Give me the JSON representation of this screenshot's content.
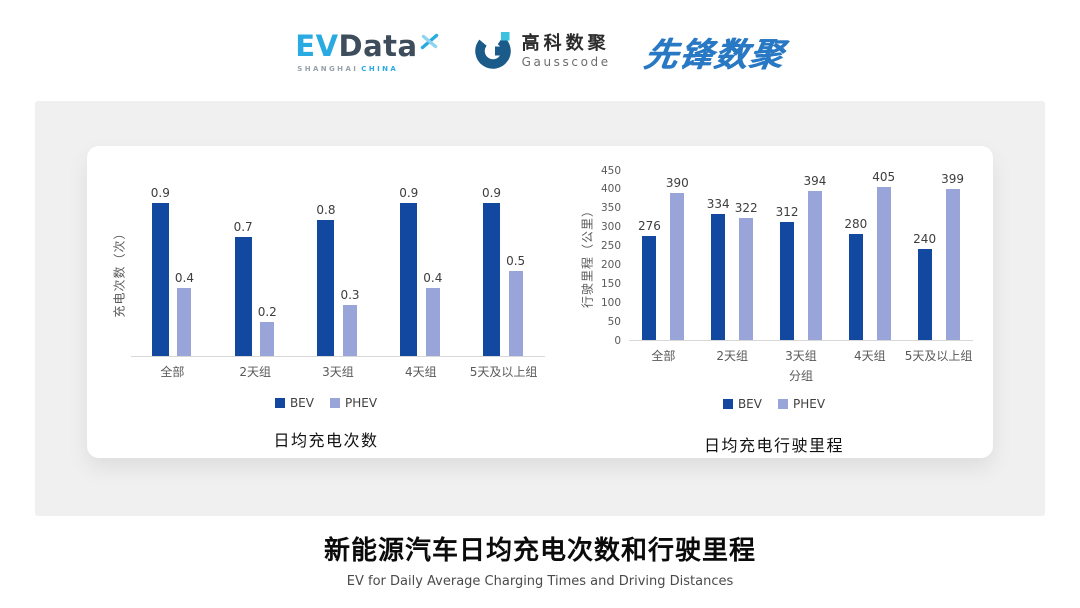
{
  "header": {
    "evdata": {
      "ev": "EV",
      "data": "Data",
      "sub_left": "SHANGHAI",
      "sub_right": "CHINA"
    },
    "gausscode": {
      "cn": "高科数聚",
      "en": "Gausscode"
    },
    "xianfeng": {
      "text": "先锋数聚"
    }
  },
  "colors": {
    "bev": "#1348A0",
    "phev": "#99A5D8",
    "accent_cyan": "#29ABE2",
    "dark_slate": "#3E4D5C",
    "gausscode_navy": "#1A5B8A",
    "xianfeng_blue": "#2878C4",
    "panel_gray": "#F0F0F1",
    "baseline_gray": "#D8D8D8"
  },
  "chart_data": [
    {
      "type": "bar",
      "title": "日均充电次数",
      "ylabel": "充电次数（次）",
      "xlabel": "",
      "categories": [
        "全部",
        "2天组",
        "3天组",
        "4天组",
        "5天及以上组"
      ],
      "series": [
        {
          "name": "BEV",
          "values": [
            0.9,
            0.7,
            0.8,
            0.9,
            0.9
          ]
        },
        {
          "name": "PHEV",
          "values": [
            0.4,
            0.2,
            0.3,
            0.4,
            0.5
          ]
        }
      ],
      "ylim": [
        0,
        1.0
      ],
      "yticks": [],
      "grid": false,
      "legend_position": "bottom",
      "value_labels": true
    },
    {
      "type": "bar",
      "title": "日均充电行驶里程",
      "ylabel": "行驶里程（公里）",
      "xlabel": "分组",
      "categories": [
        "全部",
        "2天组",
        "3天组",
        "4天组",
        "5天及以上组"
      ],
      "series": [
        {
          "name": "BEV",
          "values": [
            276,
            334,
            312,
            280,
            240
          ]
        },
        {
          "name": "PHEV",
          "values": [
            390,
            322,
            394,
            405,
            399
          ]
        }
      ],
      "ylim": [
        0,
        450
      ],
      "yticks": [
        0,
        50,
        100,
        150,
        200,
        250,
        300,
        350,
        400,
        450
      ],
      "grid": false,
      "legend_position": "bottom",
      "value_labels": true
    }
  ],
  "footer": {
    "title": "新能源汽车日均充电次数和行驶里程",
    "subtitle": "EV for Daily Average Charging Times and Driving Distances"
  }
}
